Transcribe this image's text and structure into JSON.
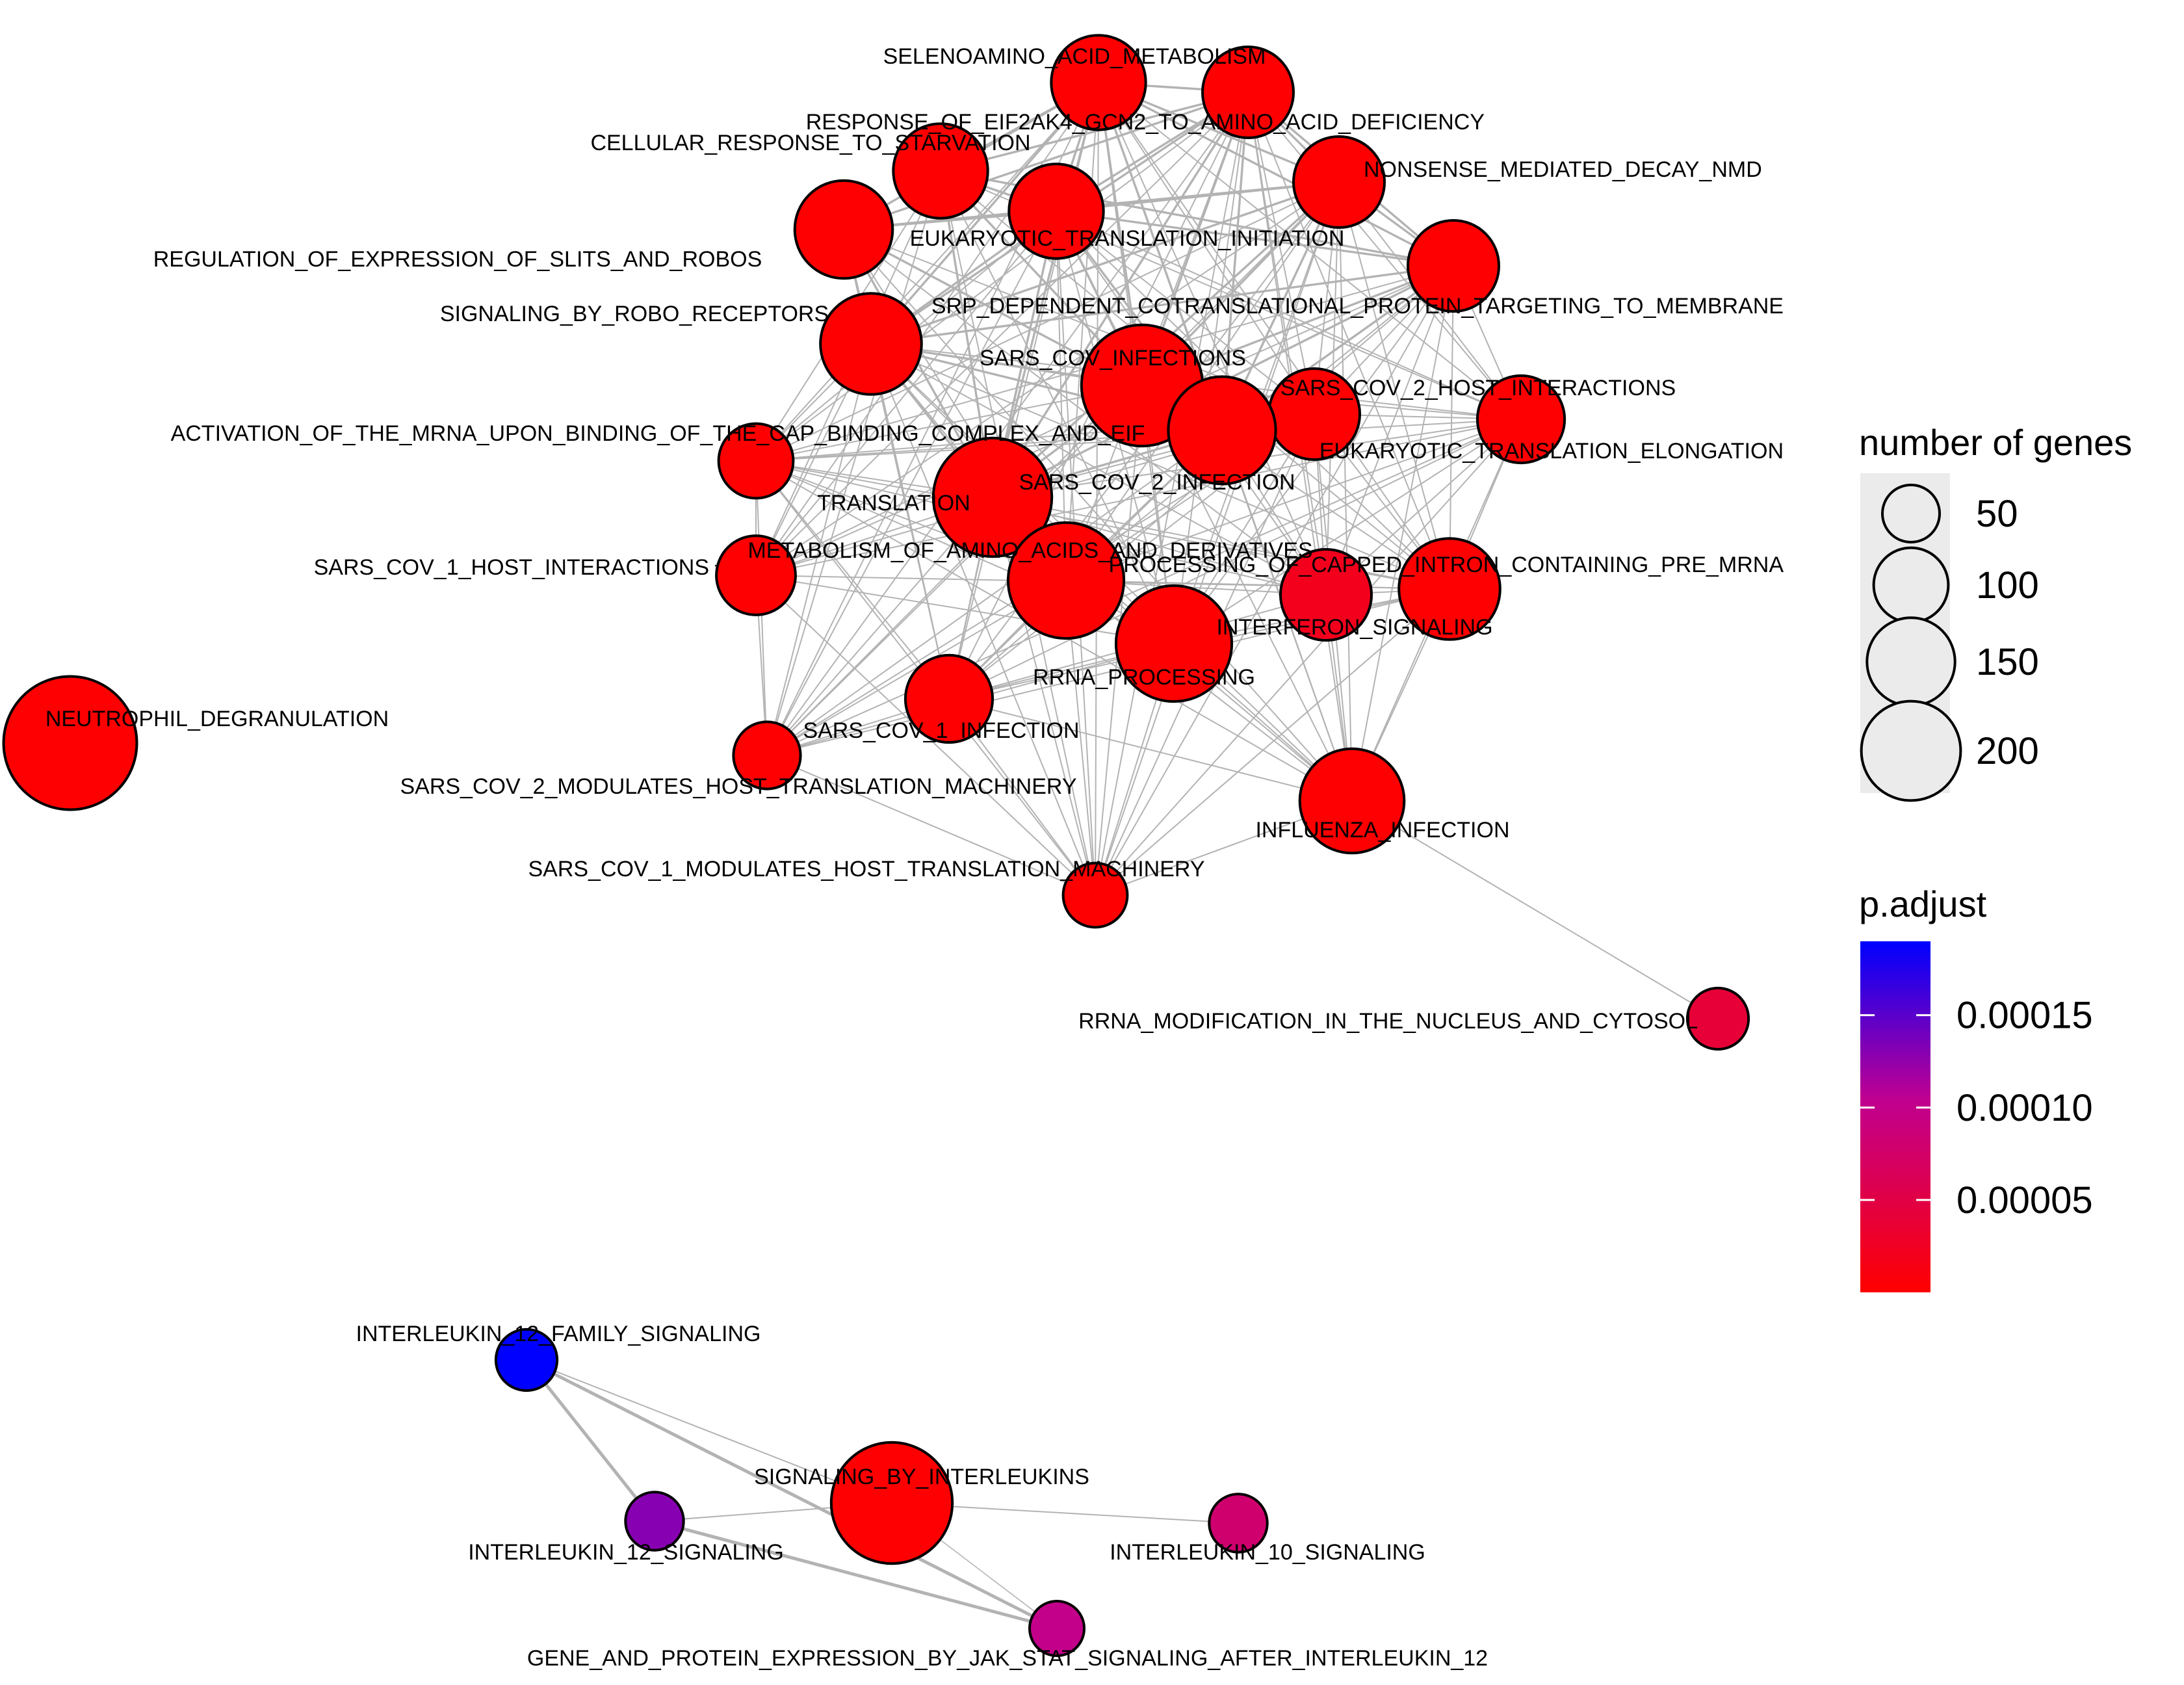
{
  "chart_data": {
    "type": "network",
    "title": "",
    "nodes": [
      {
        "id": "selenoamino",
        "label": "SELENOAMINO_ACID_METABOLISM",
        "genes": 110,
        "p_adjust": 1e-06
      },
      {
        "id": "eif2ak4",
        "label": "RESPONSE_OF_EIF2AK4_GCN2_TO_AMINO_ACID_DEFICIENCY",
        "genes": 100,
        "p_adjust": 1e-06
      },
      {
        "id": "starvation",
        "label": "CELLULAR_RESPONSE_TO_STARVATION",
        "genes": 110,
        "p_adjust": 1e-06
      },
      {
        "id": "nmd",
        "label": "NONSENSE_MEDIATED_DECAY_NMD",
        "genes": 100,
        "p_adjust": 1e-06
      },
      {
        "id": "eukinit",
        "label": "EUKARYOTIC_TRANSLATION_INITIATION",
        "genes": 110,
        "p_adjust": 1e-06
      },
      {
        "id": "slits",
        "label": "REGULATION_OF_EXPRESSION_OF_SLITS_AND_ROBOS",
        "genes": 120,
        "p_adjust": 1e-06
      },
      {
        "id": "srp",
        "label": "SRP_DEPENDENT_COTRANSLATIONAL_PROTEIN_TARGETING_TO_MEMBRANE",
        "genes": 100,
        "p_adjust": 1e-06
      },
      {
        "id": "robo",
        "label": "SIGNALING_BY_ROBO_RECEPTORS",
        "genes": 130,
        "p_adjust": 1e-06
      },
      {
        "id": "sarscov",
        "label": "SARS_COV_INFECTIONS",
        "genes": 200,
        "p_adjust": 1e-06
      },
      {
        "id": "sars2host",
        "label": "SARS_COV_2_HOST_INTERACTIONS",
        "genes": 100,
        "p_adjust": 1e-06
      },
      {
        "id": "activation",
        "label": "ACTIVATION_OF_THE_MRNA_UPON_BINDING_OF_THE_CAP_BINDING_COMPLEX_AND_EIF",
        "genes": 60,
        "p_adjust": 1e-06
      },
      {
        "id": "sars2inf",
        "label": "SARS_COV_2_INFECTION",
        "genes": 150,
        "p_adjust": 1e-06
      },
      {
        "id": "euktrans",
        "label": "EUKARYOTIC_TRANSLATION_ELONGATION",
        "genes": 90,
        "p_adjust": 1e-06
      },
      {
        "id": "translation",
        "label": "TRANSLATION",
        "genes": 190,
        "p_adjust": 1e-06
      },
      {
        "id": "sars1host",
        "label": "SARS_COV_1_HOST_INTERACTIONS",
        "genes": 70,
        "p_adjust": 1e-06
      },
      {
        "id": "aminoacids",
        "label": "METABOLISM_OF_AMINO_ACIDS_AND_DERIVATIVES",
        "genes": 180,
        "p_adjust": 1e-06
      },
      {
        "id": "capped",
        "label": "PROCESSING_OF_CAPPED_INTRON_CONTAINING_PRE_MRNA",
        "genes": 130,
        "p_adjust": 1e-06
      },
      {
        "id": "interferon",
        "label": "INTERFERON_SIGNALING",
        "genes": 100,
        "p_adjust": 2e-05
      },
      {
        "id": "rrna",
        "label": "RRNA_PROCESSING",
        "genes": 180,
        "p_adjust": 1e-06
      },
      {
        "id": "sars1inf",
        "label": "SARS_COV_1_INFECTION",
        "genes": 90,
        "p_adjust": 1e-06
      },
      {
        "id": "neutrophil",
        "label": "NEUTROPHIL_DEGRANULATION",
        "genes": 250,
        "p_adjust": 1e-06
      },
      {
        "id": "sars2mod",
        "label": "SARS_COV_2_MODULATES_HOST_TRANSLATION_MACHINERY",
        "genes": 45,
        "p_adjust": 1e-06
      },
      {
        "id": "influenza",
        "label": "INFLUENZA_INFECTION",
        "genes": 140,
        "p_adjust": 1e-06
      },
      {
        "id": "sars1mod",
        "label": "SARS_COV_1_MODULATES_HOST_TRANSLATION_MACHINERY",
        "genes": 40,
        "p_adjust": 1e-06
      },
      {
        "id": "rrnamod",
        "label": "RRNA_MODIFICATION_IN_THE_NUCLEUS_AND_CYTOSOL",
        "genes": 35,
        "p_adjust": 4e-05
      },
      {
        "id": "il12fam",
        "label": "INTERLEUKIN_12_FAMILY_SIGNALING",
        "genes": 35,
        "p_adjust": 0.00019
      },
      {
        "id": "siginterleukins",
        "label": "SIGNALING_BY_INTERLEUKINS",
        "genes": 200,
        "p_adjust": 1e-06
      },
      {
        "id": "il12",
        "label": "INTERLEUKIN_12_SIGNALING",
        "genes": 30,
        "p_adjust": 0.00013
      },
      {
        "id": "il10",
        "label": "INTERLEUKIN_10_SIGNALING",
        "genes": 30,
        "p_adjust": 8e-05
      },
      {
        "id": "jakstat",
        "label": "GENE_AND_PROTEIN_EXPRESSION_BY_JAK_STAT_SIGNALING_AFTER_INTERLEUKIN_12",
        "genes": 25,
        "p_adjust": 0.0001
      }
    ],
    "legend_size": {
      "title": "number of genes",
      "values": [
        50,
        100,
        150,
        200
      ],
      "labels": [
        "50",
        "100",
        "150",
        "200"
      ]
    },
    "legend_color": {
      "title": "p.adjust",
      "range": [
        0,
        0.00019
      ],
      "ticks": [
        5e-05,
        0.0001,
        0.00015
      ],
      "tick_labels": [
        "0.00005",
        "0.00010",
        "0.00015"
      ],
      "low_color": "#ff0000",
      "mid_color": "#c00090",
      "high_color": "#0000ff"
    },
    "edge_color": "#b3b3b3"
  }
}
